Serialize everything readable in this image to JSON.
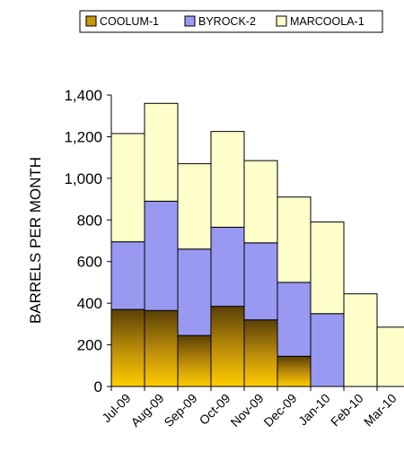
{
  "chart_data": {
    "type": "bar",
    "stacked": true,
    "categories": [
      "Jul-09",
      "Aug-09",
      "Sep-09",
      "Oct-09",
      "Nov-09",
      "Dec-09",
      "Jan-10",
      "Feb-10",
      "Mar-10"
    ],
    "series": [
      {
        "name": "COOLUM-1",
        "values": [
          370,
          365,
          245,
          385,
          320,
          145,
          0,
          0,
          0
        ],
        "color": "#C8960A"
      },
      {
        "name": "BYROCK-2",
        "values": [
          325,
          525,
          415,
          380,
          370,
          355,
          350,
          0,
          0
        ],
        "color": "#9999F2"
      },
      {
        "name": "MARCOOLA-1",
        "values": [
          520,
          470,
          410,
          460,
          395,
          410,
          440,
          445,
          285
        ],
        "color": "#FFFFCC"
      }
    ],
    "ylabel": "BARRELS PER MONTH",
    "ylim": [
      0,
      1400
    ],
    "yticks": [
      0,
      200,
      400,
      600,
      800,
      1000,
      1200,
      1400
    ],
    "ytick_labels": [
      "0",
      "200",
      "400",
      "600",
      "800",
      "1,000",
      "1,200",
      "1,400"
    ],
    "grid": false,
    "legend_position": "top"
  }
}
